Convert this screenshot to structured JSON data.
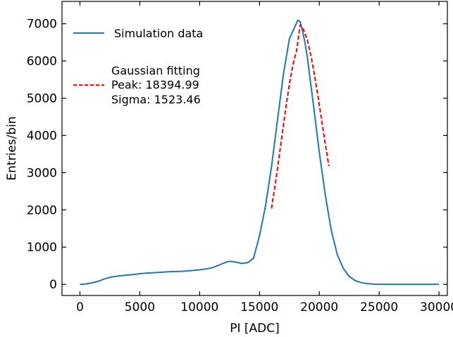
{
  "chart_data": {
    "type": "line",
    "xlabel": "PI [ADC]",
    "ylabel": "Entries/bin",
    "xlim": [
      -1500,
      30700
    ],
    "ylim": [
      -300,
      7600
    ],
    "xticks": [
      0,
      5000,
      10000,
      15000,
      20000,
      25000,
      30000
    ],
    "xtick_labels": [
      "0",
      "5000",
      "10000",
      "15000",
      "20000",
      "25000",
      "30000"
    ],
    "yticks": [
      0,
      1000,
      2000,
      3000,
      4000,
      5000,
      6000,
      7000
    ],
    "ytick_labels": [
      "0",
      "1000",
      "2000",
      "3000",
      "4000",
      "5000",
      "6000",
      "7000"
    ],
    "grid": false,
    "legend_placement": "top-left",
    "series": [
      {
        "name": "Simulation data",
        "style": "solid",
        "color": "#1f77b4",
        "x": [
          0,
          500,
          1000,
          1500,
          2000,
          2500,
          3000,
          3500,
          4000,
          4500,
          5000,
          5500,
          6000,
          6500,
          7000,
          7500,
          8000,
          8500,
          9000,
          9500,
          10000,
          10500,
          11000,
          11500,
          12000,
          12500,
          13000,
          13500,
          14000,
          14500,
          15000,
          15500,
          16000,
          16500,
          17000,
          17500,
          18000,
          18200,
          18400,
          18600,
          18800,
          19000,
          19500,
          20000,
          20500,
          21000,
          21500,
          22000,
          22500,
          23000,
          23500,
          24000,
          24500,
          25000,
          26000,
          27000,
          28000,
          29000,
          30000
        ],
        "y": [
          0,
          10,
          40,
          80,
          140,
          190,
          215,
          235,
          250,
          265,
          285,
          300,
          310,
          320,
          330,
          340,
          345,
          350,
          360,
          375,
          390,
          410,
          440,
          500,
          570,
          620,
          600,
          560,
          580,
          700,
          1300,
          2100,
          3150,
          4400,
          5650,
          6600,
          6950,
          7100,
          7050,
          6800,
          6500,
          6100,
          4850,
          3550,
          2400,
          1450,
          800,
          430,
          210,
          100,
          45,
          20,
          8,
          3,
          1,
          0,
          0,
          0,
          0
        ]
      },
      {
        "name": "Gaussian fitting",
        "style": "dashed",
        "color": "#ff0000",
        "x": [
          16000,
          16300,
          16600,
          16900,
          17200,
          17500,
          17800,
          18100,
          18395,
          18700,
          19000,
          19300,
          19600,
          19900,
          20200,
          20500,
          20800
        ],
        "y": [
          2036,
          2654,
          3337,
          4049,
          4748,
          5385,
          5911,
          6281,
          6970,
          6833,
          6560,
          6145,
          5621,
          5027,
          4400,
          3773,
          3175
        ]
      }
    ],
    "legend_entries": [
      {
        "label": "Simulation data"
      },
      {
        "label": "Gaussian fitting",
        "lines": [
          "Gaussian fitting",
          "Peak: 18394.99",
          "Sigma: 1523.46"
        ]
      }
    ],
    "annotations": {
      "peak": "Peak: 18394.99",
      "sigma": "Sigma: 1523.46"
    }
  }
}
